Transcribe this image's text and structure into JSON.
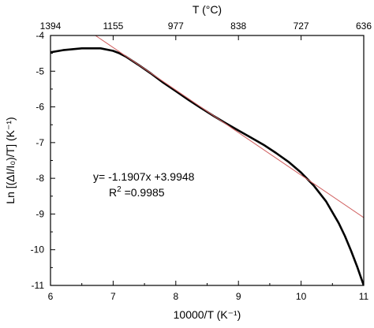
{
  "chart_data": {
    "type": "line",
    "xlabel": "10000/T (K⁻¹)",
    "ylabel": "Ln [(ΔI/I₀)/T]  (K⁻¹)",
    "top_axis_title": "T (°C)",
    "xlim": [
      6,
      11
    ],
    "ylim": [
      -11,
      -4
    ],
    "x_ticks": [
      6,
      7,
      8,
      9,
      10,
      11
    ],
    "y_ticks": [
      -11,
      -10,
      -9,
      -8,
      -7,
      -6,
      -5,
      -4
    ],
    "x_tick_labels": [
      "6",
      "7",
      "8",
      "9",
      "10",
      "11"
    ],
    "y_tick_labels": [
      "-11",
      "-10",
      "-9",
      "-8",
      "-7",
      "-6",
      "-5",
      "-4"
    ],
    "top_ticks": [
      {
        "x": 6.0,
        "label": "1394"
      },
      {
        "x": 7.0,
        "label": "1155"
      },
      {
        "x": 8.0,
        "label": "977"
      },
      {
        "x": 9.0,
        "label": "838"
      },
      {
        "x": 10.0,
        "label": "727"
      },
      {
        "x": 11.0,
        "label": "636"
      }
    ],
    "grid": false,
    "legend": "none",
    "series": [
      {
        "color": "#000000",
        "x": [
          6.0,
          6.2,
          6.5,
          6.8,
          7.0,
          7.1,
          7.2,
          7.4,
          7.6,
          7.8,
          8.0,
          8.2,
          8.4,
          8.6,
          8.8,
          9.0,
          9.2,
          9.4,
          9.6,
          9.8,
          10.0,
          10.2,
          10.4,
          10.6,
          10.7,
          10.8,
          10.9,
          10.95,
          11.0
        ],
        "y": [
          -4.47,
          -4.41,
          -4.36,
          -4.36,
          -4.43,
          -4.5,
          -4.59,
          -4.82,
          -5.06,
          -5.32,
          -5.56,
          -5.8,
          -6.03,
          -6.25,
          -6.46,
          -6.66,
          -6.86,
          -7.06,
          -7.29,
          -7.54,
          -7.84,
          -8.2,
          -8.65,
          -9.25,
          -9.62,
          -10.04,
          -10.5,
          -10.75,
          -11.0
        ]
      },
      {
        "color": "#d06060",
        "x": [
          6.7,
          11.0
        ],
        "y": [
          -3.98,
          -9.1
        ]
      }
    ],
    "annotations": {
      "equation": "y= -1.1907x +3.9948",
      "r2_base": "R",
      "r2_exp": "2",
      "r2_value": " =0.9985"
    }
  }
}
